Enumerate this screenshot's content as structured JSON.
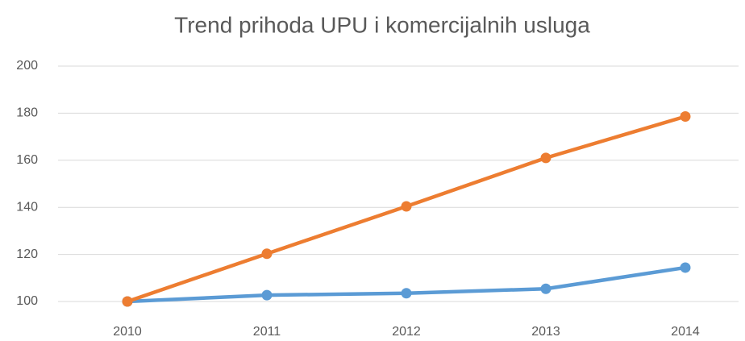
{
  "chart_data": {
    "type": "line",
    "title": "Trend prihoda UPU i komercijalnih usluga",
    "categories": [
      "2010",
      "2011",
      "2012",
      "2013",
      "2014"
    ],
    "series": [
      {
        "color": "#5b9bd5",
        "values": [
          100,
          102.7,
          103.5,
          105.4,
          114.4
        ]
      },
      {
        "color": "#ed7d31",
        "values": [
          100,
          120.3,
          140.4,
          161,
          178.6
        ]
      }
    ],
    "ylim": [
      100,
      200
    ],
    "yticks": [
      100,
      120,
      140,
      160,
      180,
      200
    ],
    "grid": true
  }
}
